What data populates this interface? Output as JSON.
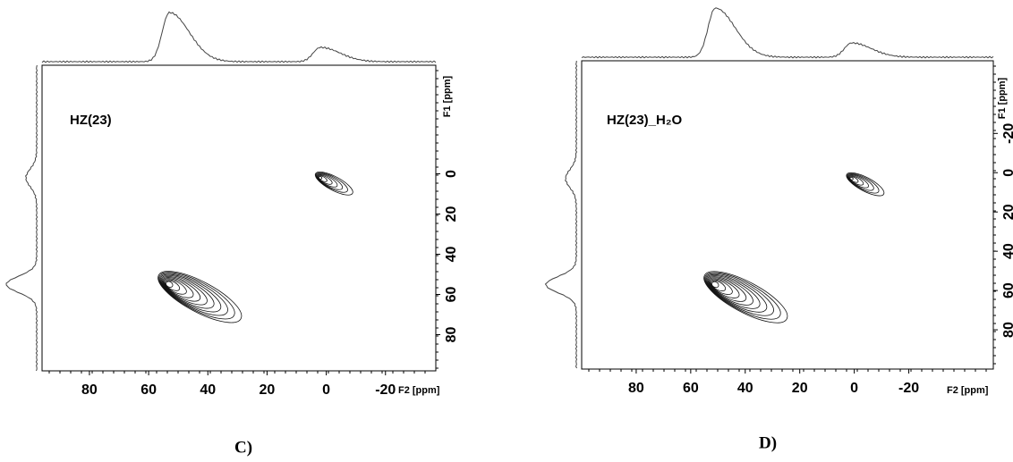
{
  "chart_data": [
    {
      "type": "contour",
      "annotation": "HZ(23)",
      "annotation_color": "#000000",
      "label": "C)",
      "xlabel": "F2 [ppm]",
      "ylabel": "F1 [ppm]",
      "xlim": [
        96,
        -37
      ],
      "xticks": [
        80,
        60,
        40,
        20,
        0,
        -20
      ],
      "ylim": [
        -54,
        98
      ],
      "yticks": [
        0,
        20,
        40,
        60,
        80
      ],
      "peaks": {
        "x": [
          2,
          53
        ],
        "y": [
          2,
          55
        ]
      }
    },
    {
      "type": "contour",
      "annotation": "HZ(23)_H₂O",
      "annotation_color": "#1a1adc",
      "label": "D)",
      "xlabel": "F2 [ppm]",
      "ylabel": "F1 [ppm]",
      "xlim": [
        100,
        -51
      ],
      "xticks": [
        80,
        60,
        40,
        20,
        0,
        -20
      ],
      "ylim": [
        -57,
        100
      ],
      "yticks": [
        -20,
        0,
        20,
        40,
        60,
        80
      ],
      "peaks": {
        "x": [
          1,
          51
        ],
        "y": [
          3,
          57
        ]
      }
    }
  ]
}
